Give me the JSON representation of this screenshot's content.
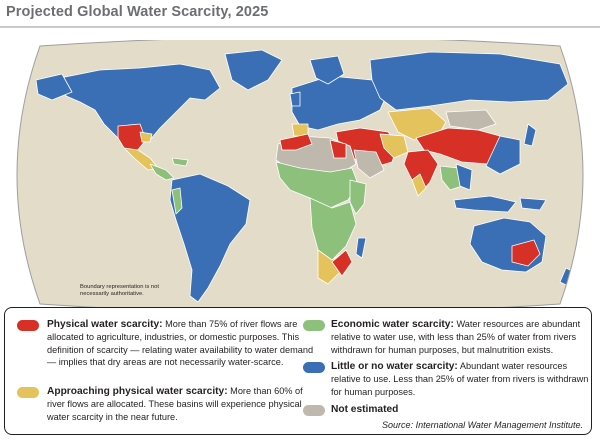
{
  "title": "Projected Global Water Scarcity, 2025",
  "disclaimer": "Boundary representation is not necessarily authoritative.",
  "colors": {
    "ocean": "#e2dcc8",
    "physical": "#d73027",
    "approaching": "#e5c35c",
    "economic": "#8dc07a",
    "little": "#3a6fb5",
    "not_estimated": "#bfb9ad",
    "border": "#ffffff"
  },
  "legend": {
    "physical": {
      "label": "Physical water scarcity:",
      "desc": "More than 75% of river flows are allocated to agriculture, industries, or domestic purposes. This definition of scarcity — relating water availability to water demand — implies that dry areas are not necessarily water-scarce.",
      "icon": "red-swatch"
    },
    "approaching": {
      "label": "Approaching physical water scarcity:",
      "desc": "More than 60% of river flows are allocated. These basins will experience physical water scarcity in the near future.",
      "icon": "yellow-swatch"
    },
    "economic": {
      "label": "Economic water scarcity:",
      "desc": "Water resources are abundant relative to water use, with less than 25% of water from rivers withdrawn for human purposes, but malnutrition exists.",
      "icon": "green-swatch"
    },
    "little": {
      "label": "Little or no water scarcity:",
      "desc": "Abundant water resources relative to use. Less than 25% of water from rivers is withdrawn for human purposes.",
      "icon": "blue-swatch"
    },
    "not_estimated": {
      "label": "Not estimated",
      "desc": "",
      "icon": "grey-swatch"
    }
  },
  "source": "Source: International Water Management Institute."
}
